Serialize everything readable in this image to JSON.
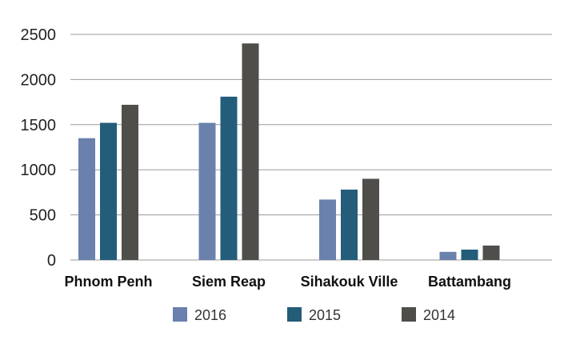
{
  "chart_data": {
    "type": "bar",
    "categories": [
      "Phnom Penh",
      "Siem Reap",
      "Sihakouk Ville",
      "Battambang"
    ],
    "series": [
      {
        "name": "2016",
        "color": "#6a81ad",
        "values": [
          1350,
          1520,
          670,
          90
        ]
      },
      {
        "name": "2015",
        "color": "#235d7a",
        "values": [
          1520,
          1810,
          780,
          115
        ]
      },
      {
        "name": "2014",
        "color": "#4f4e4a",
        "values": [
          1720,
          2400,
          900,
          160
        ]
      }
    ],
    "yticks": [
      0,
      500,
      1000,
      1500,
      2000,
      2500
    ],
    "ylim": [
      0,
      2500
    ],
    "grid": true,
    "legend": "bottom"
  }
}
